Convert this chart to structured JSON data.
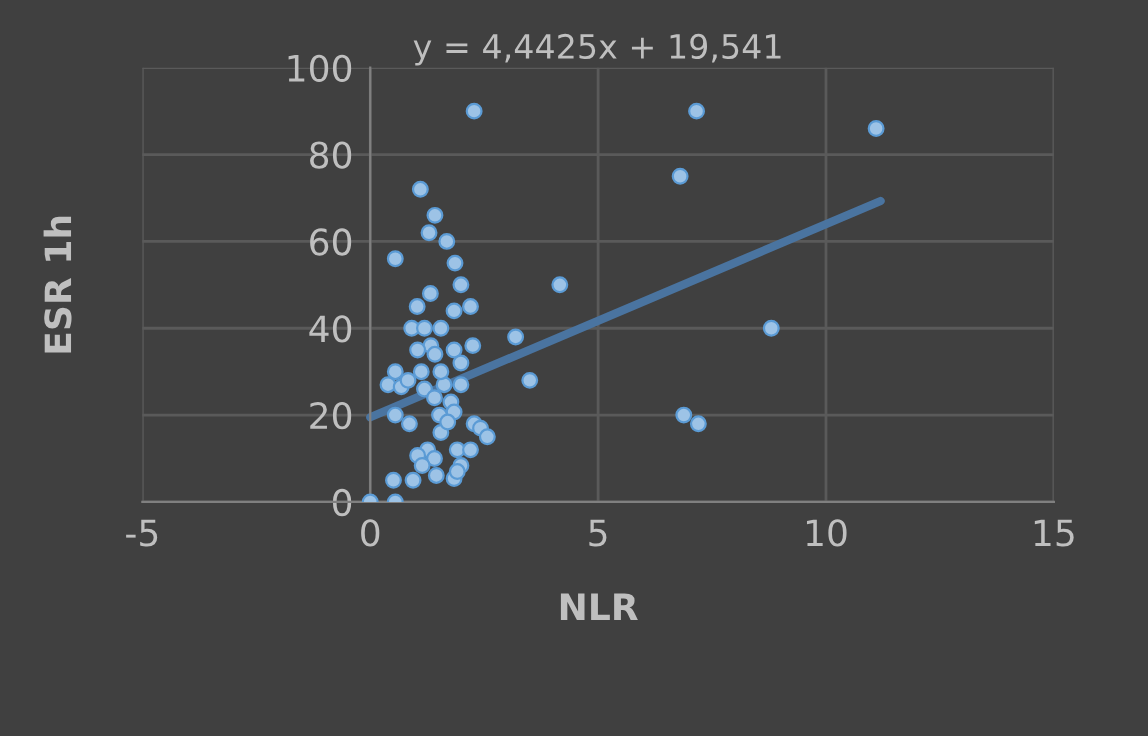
{
  "chart_data": {
    "type": "scatter",
    "xlabel": "NLR",
    "ylabel": "ESR 1h",
    "annotations": [
      "y = 4,4425x + 19,541"
    ],
    "series": [
      {
        "color": "#9dc3e6",
        "x": [
          2.28,
          7.16,
          11.1,
          6.8,
          8.8,
          6.88,
          7.2,
          4.16,
          3.19,
          3.5,
          1.1,
          1.42,
          1.29,
          1.68,
          0.55,
          1.86,
          1.99,
          1.32,
          1.03,
          1.84,
          2.2,
          0.91,
          1.19,
          1.55,
          2.25,
          1.33,
          1.04,
          1.42,
          1.84,
          1.99,
          1.12,
          0.55,
          0.39,
          0.68,
          0.83,
          1.19,
          1.62,
          1.99,
          1.41,
          1.77,
          0.55,
          1.52,
          1.84,
          0.86,
          2.28,
          2.42,
          2.57,
          1.55,
          1.91,
          2.2,
          1.26,
          1.04,
          1.41,
          1.14,
          1.99,
          1.45,
          1.84,
          0.51,
          0.94,
          0,
          0.55,
          1.7,
          1.55,
          1.91
        ],
        "values": [
          90,
          90,
          86,
          75,
          40,
          20,
          18,
          50,
          38,
          28,
          72,
          66,
          62,
          60,
          56,
          55,
          50,
          48,
          45,
          44,
          45,
          40,
          40,
          40,
          36,
          36,
          35,
          34,
          35,
          32,
          30,
          30,
          27,
          26.5,
          28,
          26,
          27,
          27,
          24,
          23,
          20,
          20,
          20.7,
          18,
          18,
          17,
          15,
          16,
          12,
          12,
          12,
          10.7,
          10,
          8.4,
          8.4,
          6.1,
          5.4,
          5,
          5,
          0,
          0,
          18.4,
          30,
          7
        ]
      },
      {
        "type": "line",
        "marker": "none",
        "color": "#4a74a0",
        "x": [
          0,
          11.2
        ],
        "values": [
          19.5,
          69.3
        ]
      }
    ],
    "xlim": [
      -5,
      15
    ],
    "xticks": [
      -5,
      0,
      5,
      10,
      15
    ],
    "ylim": [
      0,
      100
    ],
    "yticks": [
      0,
      20,
      40,
      60,
      80,
      100
    ],
    "grid": true,
    "legend": false,
    "marker": "circle"
  }
}
